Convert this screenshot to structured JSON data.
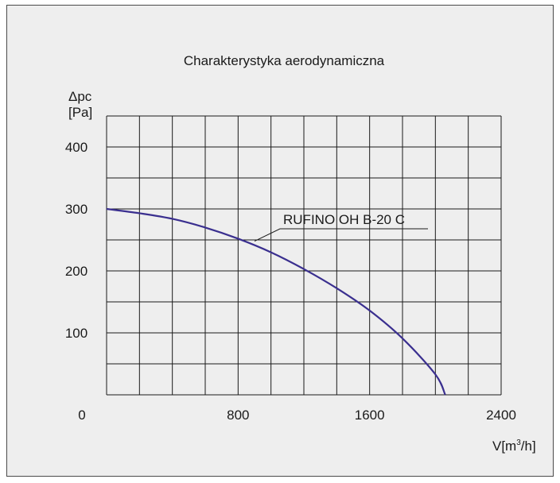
{
  "chart_data": {
    "type": "line",
    "title": "Charakterystyka aerodynamiczna",
    "ylabel_line1": "Δpc",
    "ylabel_line2": "[Pa]",
    "xlabel_prefix": "V[m",
    "xlabel_sup": "3",
    "xlabel_suffix": "/h]",
    "x_origin_label": "0",
    "xticks": [
      800,
      1600,
      2400
    ],
    "yticks": [
      100,
      200,
      300,
      400
    ],
    "xlim": [
      0,
      2400
    ],
    "ylim": [
      0,
      450
    ],
    "grid": true,
    "series": [
      {
        "name": "RUFINO OH B-20 C",
        "color": "#3a2f8f",
        "x": [
          0,
          200,
          400,
          600,
          800,
          1000,
          1200,
          1400,
          1600,
          1800,
          2000,
          2060
        ],
        "y": [
          300,
          293,
          284,
          270,
          252,
          230,
          203,
          172,
          136,
          91,
          33,
          0
        ]
      }
    ]
  }
}
